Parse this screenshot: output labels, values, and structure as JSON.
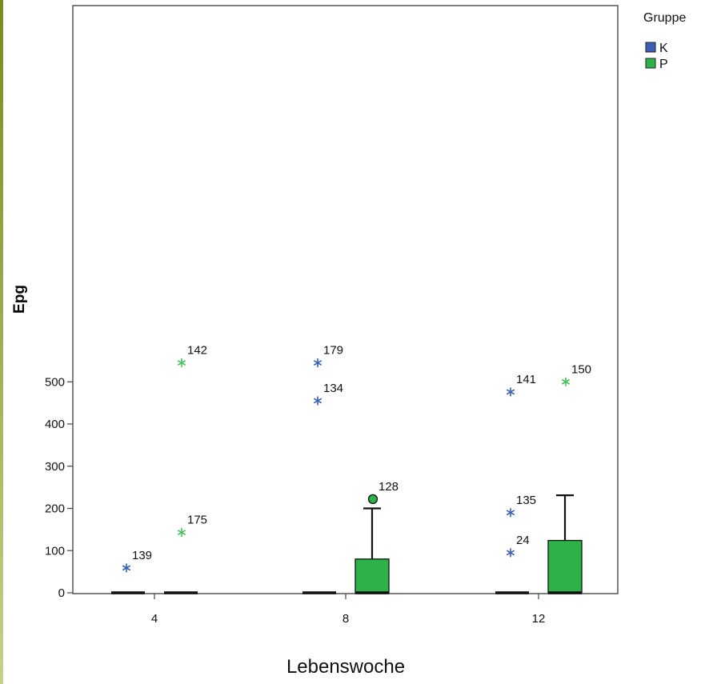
{
  "chart_data": {
    "type": "boxplot",
    "xlabel": "Lebenswoche",
    "ylabel": "Epg",
    "ylim": [
      0,
      550
    ],
    "yticks": [
      0,
      100,
      200,
      300,
      400,
      500
    ],
    "categories": [
      "4",
      "8",
      "12"
    ],
    "legend": {
      "title": "Gruppe",
      "placement": "right",
      "entries": [
        {
          "name": "K",
          "color": "#3a5fb5"
        },
        {
          "name": "P",
          "color": "#2db24a"
        }
      ]
    },
    "series": [
      {
        "name": "K",
        "color": "#3a5fb5",
        "boxes": [
          {
            "category": "4",
            "min": 0,
            "q1": 0,
            "median": 0,
            "q3": 0,
            "max": 0
          },
          {
            "category": "8",
            "min": 0,
            "q1": 0,
            "median": 0,
            "q3": 0,
            "max": 0
          },
          {
            "category": "12",
            "min": 0,
            "q1": 0,
            "median": 0,
            "q3": 0,
            "max": 0
          }
        ],
        "outliers": [
          {
            "category": "4",
            "value": 59,
            "label": "139",
            "kind": "extreme"
          },
          {
            "category": "8",
            "value": 455,
            "label": "134",
            "kind": "extreme"
          },
          {
            "category": "8",
            "value": 545,
            "label": "179",
            "kind": "extreme"
          },
          {
            "category": "12",
            "value": 95,
            "label": "24",
            "kind": "extreme"
          },
          {
            "category": "12",
            "value": 190,
            "label": "135",
            "kind": "extreme"
          },
          {
            "category": "12",
            "value": 476,
            "label": "141",
            "kind": "extreme"
          }
        ]
      },
      {
        "name": "P",
        "color": "#2db24a",
        "boxes": [
          {
            "category": "4",
            "min": 0,
            "q1": 0,
            "median": 0,
            "q3": 0,
            "max": 0
          },
          {
            "category": "8",
            "min": 0,
            "q1": 0,
            "median": 0,
            "q3": 80,
            "max": 200
          },
          {
            "category": "12",
            "min": 0,
            "q1": 0,
            "median": 0,
            "q3": 124,
            "max": 231
          }
        ],
        "outliers": [
          {
            "category": "4",
            "value": 143,
            "label": "175",
            "kind": "extreme"
          },
          {
            "category": "4",
            "value": 545,
            "label": "142",
            "kind": "extreme"
          },
          {
            "category": "8",
            "value": 222,
            "label": "128",
            "kind": "outlier"
          },
          {
            "category": "12",
            "value": 500,
            "label": "150",
            "kind": "extreme"
          }
        ]
      }
    ]
  }
}
